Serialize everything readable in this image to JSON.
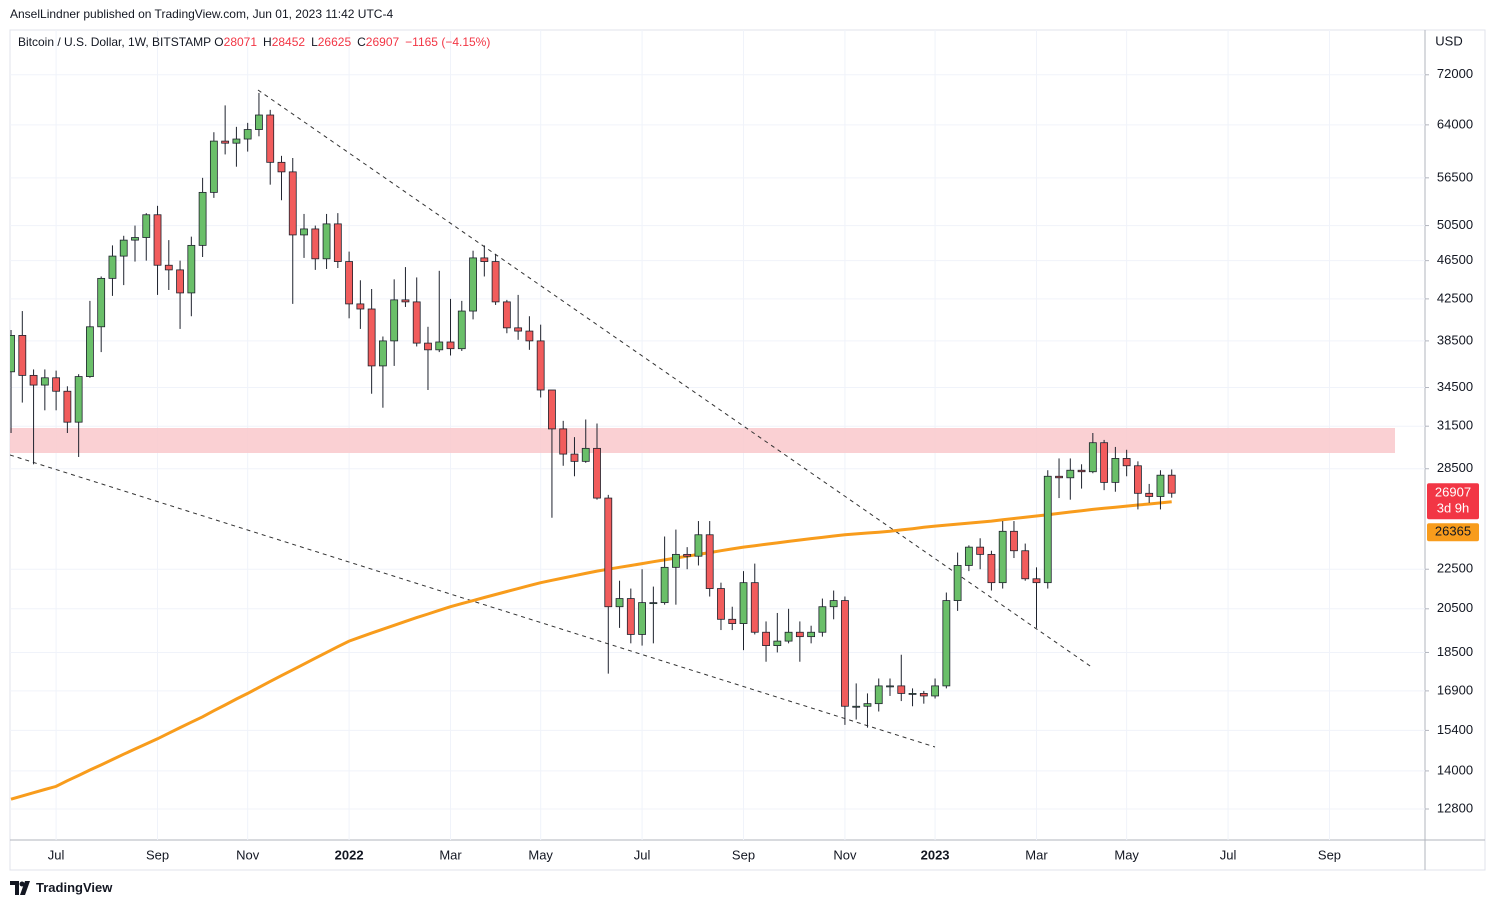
{
  "header": {
    "byline": "AnselLindner published on TradingView.com, Jun 01, 2023 11:42 UTC-4"
  },
  "footer": {
    "brand": "TradingView"
  },
  "chart_data": {
    "type": "candlestick",
    "symbol": "Bitcoin / U.S. Dollar, 1W, BITSTAMP",
    "ohlc_labels": [
      "O",
      "H",
      "L",
      "C"
    ],
    "change": "−1165 (−4.15%)",
    "currency": "USD",
    "countdown": "3d 9h",
    "log": true,
    "grid": true,
    "up_color": "#6abf69",
    "down_color": "#f15c5c",
    "wick_color": "#1e222d",
    "ylim": [
      11900,
      80000
    ],
    "yticks": [
      72000,
      64000,
      56500,
      50500,
      46500,
      42500,
      38500,
      34500,
      31500,
      28500,
      22500,
      20500,
      18500,
      16900,
      15400,
      14000,
      12800
    ],
    "categories": [
      null,
      null,
      null,
      null,
      "Jul",
      null,
      null,
      null,
      null,
      null,
      null,
      null,
      null,
      "Sep",
      null,
      null,
      null,
      null,
      null,
      null,
      null,
      "Nov",
      null,
      null,
      null,
      null,
      null,
      null,
      null,
      null,
      "2022",
      null,
      null,
      null,
      null,
      null,
      null,
      null,
      null,
      "Mar",
      null,
      null,
      null,
      null,
      null,
      null,
      null,
      "May",
      null,
      null,
      null,
      null,
      null,
      null,
      null,
      null,
      "Jul",
      null,
      null,
      null,
      null,
      null,
      null,
      null,
      null,
      "Sep",
      null,
      null,
      null,
      null,
      null,
      null,
      null,
      null,
      "Nov",
      null,
      null,
      null,
      null,
      null,
      null,
      null,
      "2023",
      null,
      null,
      null,
      null,
      null,
      null,
      null,
      null,
      "Mar",
      null,
      null,
      null,
      null,
      null,
      null,
      null,
      "May",
      null,
      null,
      null,
      null,
      null,
      null,
      null,
      null,
      "Jul",
      null,
      null,
      null,
      null,
      null,
      null,
      null,
      null,
      "Sep",
      null,
      null,
      null,
      null,
      null,
      null,
      null
    ],
    "open": [
      35800,
      39000,
      35500,
      34700,
      35300,
      34200,
      31800,
      35400,
      39800,
      44600,
      47000,
      48800,
      49100,
      51800,
      46000,
      45500,
      43100,
      48200,
      54600,
      61600,
      61300,
      61900,
      63300,
      65500,
      58600,
      57300,
      49400,
      50100,
      46700,
      50700,
      46400,
      42000,
      41500,
      36300,
      38500,
      42400,
      42200,
      38300,
      37700,
      38400,
      37800,
      41300,
      46800,
      46400,
      42200,
      39700,
      39400,
      38500,
      34300,
      31300,
      29500,
      29000,
      29900,
      26600,
      20600,
      21000,
      19300,
      20800,
      20800,
      22600,
      23300,
      23200,
      24400,
      21500,
      20000,
      19800,
      21800,
      19400,
      18800,
      19000,
      19400,
      19200,
      19400,
      20600,
      20900,
      16300,
      16300,
      16400,
      17100,
      17100,
      16800,
      16800,
      16700,
      17100,
      20900,
      22700,
      23700,
      23300,
      21800,
      24600,
      23500,
      22000,
      21800,
      28000,
      27900,
      28400,
      28300,
      30300,
      27600,
      29200,
      28700,
      26900,
      26700,
      28071,
      null,
      null,
      null,
      null,
      null,
      null,
      null,
      null,
      null,
      null,
      null,
      null,
      null,
      null,
      null,
      null,
      null,
      null,
      null,
      null,
      null
    ],
    "high": [
      39500,
      41300,
      36000,
      36000,
      35900,
      34600,
      35600,
      42300,
      44800,
      48200,
      49300,
      50500,
      52000,
      52900,
      48800,
      46500,
      49200,
      56500,
      62900,
      67000,
      63700,
      64300,
      69000,
      66300,
      59500,
      59200,
      51900,
      50500,
      51900,
      52000,
      47500,
      44400,
      43500,
      38900,
      44500,
      45800,
      44700,
      39800,
      45400,
      42500,
      42300,
      47600,
      48200,
      47200,
      42400,
      42900,
      40800,
      40000,
      34300,
      31900,
      30700,
      32000,
      31700,
      26800,
      21900,
      21500,
      22500,
      21600,
      24300,
      24700,
      23700,
      25200,
      25200,
      21800,
      20600,
      22400,
      22800,
      19900,
      20300,
      20500,
      19900,
      19700,
      21000,
      21400,
      21100,
      17200,
      16800,
      17400,
      17400,
      18400,
      17000,
      16900,
      17400,
      21300,
      23400,
      23800,
      24200,
      23500,
      25200,
      25200,
      23900,
      22600,
      28400,
      29200,
      29200,
      28800,
      31000,
      30500,
      30000,
      29800,
      29000,
      27500,
      28400,
      28452,
      null,
      null,
      null,
      null,
      null,
      null,
      null,
      null,
      null,
      null,
      null,
      null,
      null,
      null,
      null,
      null,
      null,
      null,
      null,
      null,
      null
    ],
    "low": [
      31000,
      33300,
      28800,
      32700,
      32700,
      31000,
      29300,
      35300,
      37500,
      42800,
      43900,
      46400,
      46500,
      42900,
      43400,
      39600,
      40800,
      46900,
      53900,
      59700,
      58000,
      60100,
      62300,
      55600,
      53600,
      42000,
      46800,
      45500,
      45600,
      45700,
      40600,
      39600,
      34000,
      32900,
      36300,
      41700,
      38000,
      34300,
      37500,
      37200,
      37600,
      40500,
      44800,
      41900,
      39200,
      38600,
      37700,
      33700,
      25400,
      28700,
      28000,
      28900,
      26500,
      17600,
      19600,
      18900,
      18800,
      18900,
      20700,
      20700,
      22500,
      22700,
      21100,
      19500,
      19500,
      18600,
      19300,
      18100,
      18500,
      18900,
      18100,
      18900,
      19200,
      20000,
      15600,
      15800,
      15500,
      16100,
      16700,
      16500,
      16300,
      16400,
      16600,
      17000,
      20400,
      22400,
      22500,
      21400,
      21500,
      23100,
      21900,
      19600,
      21500,
      26600,
      26500,
      27200,
      28200,
      27100,
      27000,
      28000,
      25900,
      26300,
      25900,
      26625,
      null,
      null,
      null,
      null,
      null,
      null,
      null,
      null,
      null,
      null,
      null,
      null,
      null,
      null,
      null,
      null,
      null,
      null,
      null,
      null,
      null
    ],
    "close": [
      39000,
      35500,
      34700,
      35300,
      34200,
      31800,
      35400,
      39800,
      44600,
      47000,
      48800,
      49100,
      51800,
      46000,
      45500,
      43100,
      48200,
      54600,
      61600,
      61300,
      61900,
      63300,
      65500,
      58600,
      57300,
      49400,
      50100,
      46700,
      50700,
      46400,
      42000,
      41500,
      36300,
      38500,
      42400,
      42200,
      38300,
      37700,
      38400,
      37800,
      41300,
      46800,
      46400,
      42200,
      39700,
      39400,
      38500,
      34300,
      31300,
      29500,
      29000,
      29900,
      26600,
      20600,
      21000,
      19300,
      20800,
      20800,
      22600,
      23300,
      23200,
      24400,
      21500,
      20000,
      19800,
      21800,
      19400,
      18800,
      19000,
      19400,
      19200,
      19400,
      20600,
      20900,
      16300,
      16300,
      16400,
      17100,
      17100,
      16800,
      16800,
      16700,
      17100,
      20900,
      22700,
      23700,
      23300,
      21800,
      24600,
      23500,
      22000,
      21800,
      28000,
      27900,
      28400,
      28300,
      30300,
      27600,
      29200,
      28700,
      26900,
      26700,
      28071,
      26907,
      null,
      null,
      null,
      null,
      null,
      null,
      null,
      null,
      null,
      null,
      null,
      null,
      null,
      null,
      null,
      null,
      null,
      null,
      null,
      null,
      null
    ],
    "ma": {
      "color": "#f89c1c",
      "values": [
        13100,
        13200,
        13300,
        13400,
        13500,
        13680,
        13850,
        14030,
        14200,
        14380,
        14560,
        14740,
        14920,
        15100,
        15300,
        15500,
        15700,
        15900,
        16130,
        16350,
        16580,
        16800,
        17040,
        17280,
        17520,
        17760,
        18000,
        18250,
        18500,
        18750,
        19000,
        19180,
        19360,
        19540,
        19720,
        19900,
        20080,
        20250,
        20430,
        20600,
        20750,
        20900,
        21050,
        21200,
        21350,
        21500,
        21650,
        21800,
        21920,
        22040,
        22160,
        22280,
        22400,
        22500,
        22600,
        22700,
        22800,
        22900,
        23000,
        23100,
        23200,
        23300,
        23400,
        23500,
        23600,
        23700,
        23780,
        23860,
        23940,
        24020,
        24100,
        24180,
        24250,
        24330,
        24400,
        24450,
        24500,
        24550,
        24600,
        24680,
        24750,
        24830,
        24900,
        24960,
        25020,
        25080,
        25140,
        25200,
        25280,
        25350,
        25430,
        25500,
        25580,
        25660,
        25740,
        25820,
        25900,
        25970,
        26030,
        26100,
        26170,
        26230,
        26300,
        26365,
        null,
        null,
        null,
        null,
        null,
        null,
        null,
        null,
        null,
        null,
        null,
        null,
        null,
        null,
        null,
        null,
        null,
        null,
        null,
        null,
        null
      ]
    }
  }
}
